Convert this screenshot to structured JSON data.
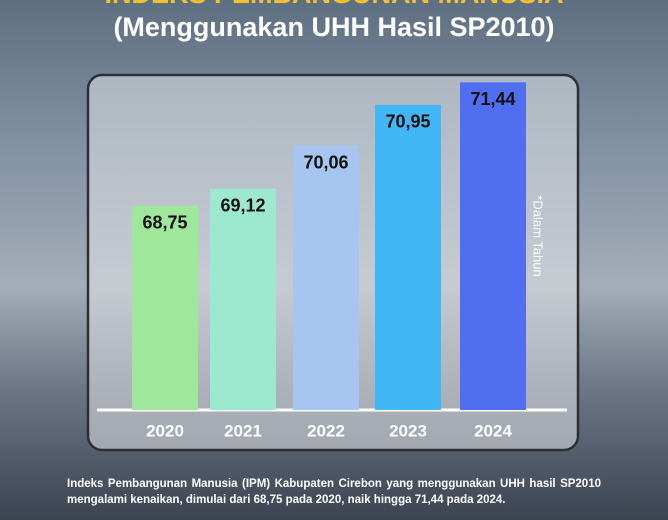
{
  "chart_data": {
    "type": "bar",
    "title": "INDEKS PEMBANGUNAN MANUSIA",
    "subtitle": "(Menggunakan UHH Hasil SP2010)",
    "note": "*Dalam Tahun",
    "categories": [
      "2020",
      "2021",
      "2022",
      "2023",
      "2024"
    ],
    "values": [
      68.75,
      69.12,
      70.06,
      70.95,
      71.44
    ],
    "value_labels": [
      "68,75",
      "69,12",
      "70,06",
      "70,95",
      "71,44"
    ],
    "colors": [
      "#9fe89b",
      "#9ce9cf",
      "#a6c5f1",
      "#43b7f5",
      "#4f6ff0"
    ],
    "ylim": [
      64.3,
      71.6
    ],
    "caption": "Indeks Pembangunan Manusia (IPM) Kabupaten Cirebon yang menggunakan UHH hasil SP2010 mengalami kenaikan, dimulai dari 68,75 pada 2020, naik hingga 71,44 pada 2024."
  }
}
